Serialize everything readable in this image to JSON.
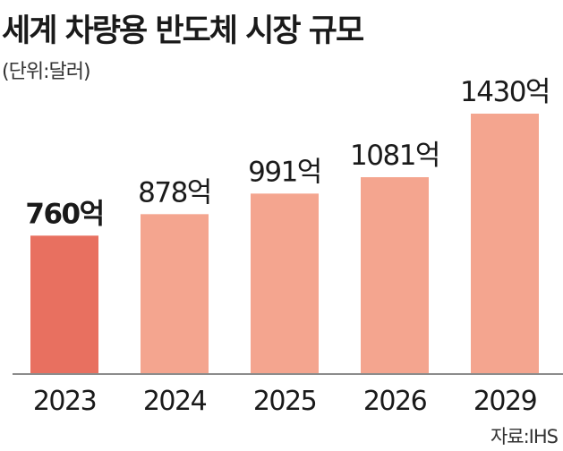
{
  "title": "세계 차량용 반도체 시장 규모",
  "unit": "(단위:달러)",
  "source": "자료:IHS",
  "chart_data": {
    "type": "bar",
    "categories": [
      "2023",
      "2024",
      "2025",
      "2026",
      "2029"
    ],
    "values": [
      760,
      878,
      991,
      1081,
      1430
    ],
    "data_labels": [
      "760억",
      "878억",
      "991억",
      "1081억",
      "1430억"
    ],
    "colors": [
      "#e87060",
      "#f4a58f",
      "#f4a58f",
      "#f4a58f",
      "#f4a58f"
    ],
    "ylim": [
      0,
      1430
    ],
    "grid": false,
    "legend": "none"
  }
}
